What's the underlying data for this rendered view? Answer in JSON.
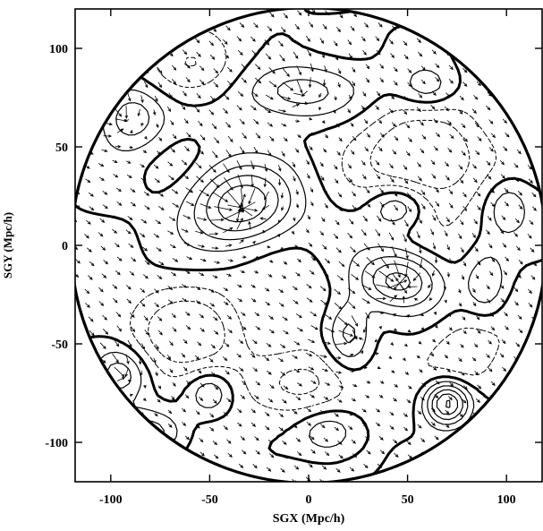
{
  "chart_data": {
    "type": "scatter",
    "title": "",
    "xlabel": "SGX (Mpc/h)",
    "ylabel": "SGY (Mpc/h)",
    "xlim": [
      -118,
      118
    ],
    "ylim": [
      -120,
      120
    ],
    "x_ticks": [
      -100,
      -50,
      0,
      50,
      100
    ],
    "y_ticks": [
      -100,
      -50,
      0,
      50,
      100
    ],
    "grid": false,
    "survey_radius": 120,
    "contour_density_peaks": [
      {
        "x": -35,
        "y": 20,
        "sx": 18,
        "sy": 14,
        "a": 1.6
      },
      {
        "x": 45,
        "y": -18,
        "sx": 14,
        "sy": 10,
        "a": 1.3
      },
      {
        "x": -5,
        "y": 78,
        "sx": 20,
        "sy": 10,
        "a": 0.9
      },
      {
        "x": 20,
        "y": -45,
        "sx": 8,
        "sy": 12,
        "a": 0.9
      },
      {
        "x": 70,
        "y": -80,
        "sx": 8,
        "sy": 8,
        "a": 1.8
      },
      {
        "x": -90,
        "y": 65,
        "sx": 12,
        "sy": 12,
        "a": 1.0
      },
      {
        "x": -95,
        "y": -65,
        "sx": 10,
        "sy": 10,
        "a": 1.0
      },
      {
        "x": -50,
        "y": -75,
        "sx": 8,
        "sy": 8,
        "a": 0.7
      },
      {
        "x": 45,
        "y": 20,
        "sx": 10,
        "sy": 8,
        "a": 0.8
      },
      {
        "x": 90,
        "y": -20,
        "sx": 8,
        "sy": 12,
        "a": 0.7
      },
      {
        "x": 100,
        "y": 20,
        "sx": 8,
        "sy": 10,
        "a": 0.6
      },
      {
        "x": 60,
        "y": 80,
        "sx": 10,
        "sy": 8,
        "a": 0.6
      },
      {
        "x": -80,
        "y": -95,
        "sx": 12,
        "sy": 8,
        "a": 0.8
      },
      {
        "x": 10,
        "y": -95,
        "sx": 10,
        "sy": 8,
        "a": 0.6
      }
    ],
    "contour_density_voids": [
      {
        "x": 60,
        "y": 45,
        "sx": 22,
        "sy": 18,
        "a": 1.0
      },
      {
        "x": -60,
        "y": -45,
        "sx": 20,
        "sy": 16,
        "a": 0.9
      },
      {
        "x": 0,
        "y": -70,
        "sx": 18,
        "sy": 12,
        "a": 0.7
      },
      {
        "x": 80,
        "y": -55,
        "sx": 14,
        "sy": 14,
        "a": 0.6
      },
      {
        "x": -60,
        "y": 90,
        "sx": 16,
        "sy": 12,
        "a": 0.6
      }
    ],
    "contour_levels": [
      -0.6,
      -0.3,
      0.0,
      0.3,
      0.6,
      0.9,
      1.2,
      1.5
    ],
    "contour_bold_level": 0.0,
    "velocity_field": {
      "grid_step": 7,
      "attractors": [
        {
          "x": -35,
          "y": 20,
          "strength": 55
        },
        {
          "x": 45,
          "y": -18,
          "strength": 40
        },
        {
          "x": 22,
          "y": -45,
          "strength": 22
        },
        {
          "x": -95,
          "y": 65,
          "strength": 20
        },
        {
          "x": -95,
          "y": -65,
          "strength": 18
        },
        {
          "x": -5,
          "y": 78,
          "strength": 20
        }
      ],
      "bulk_flow": {
        "vx": 2,
        "vy": -2
      }
    }
  }
}
